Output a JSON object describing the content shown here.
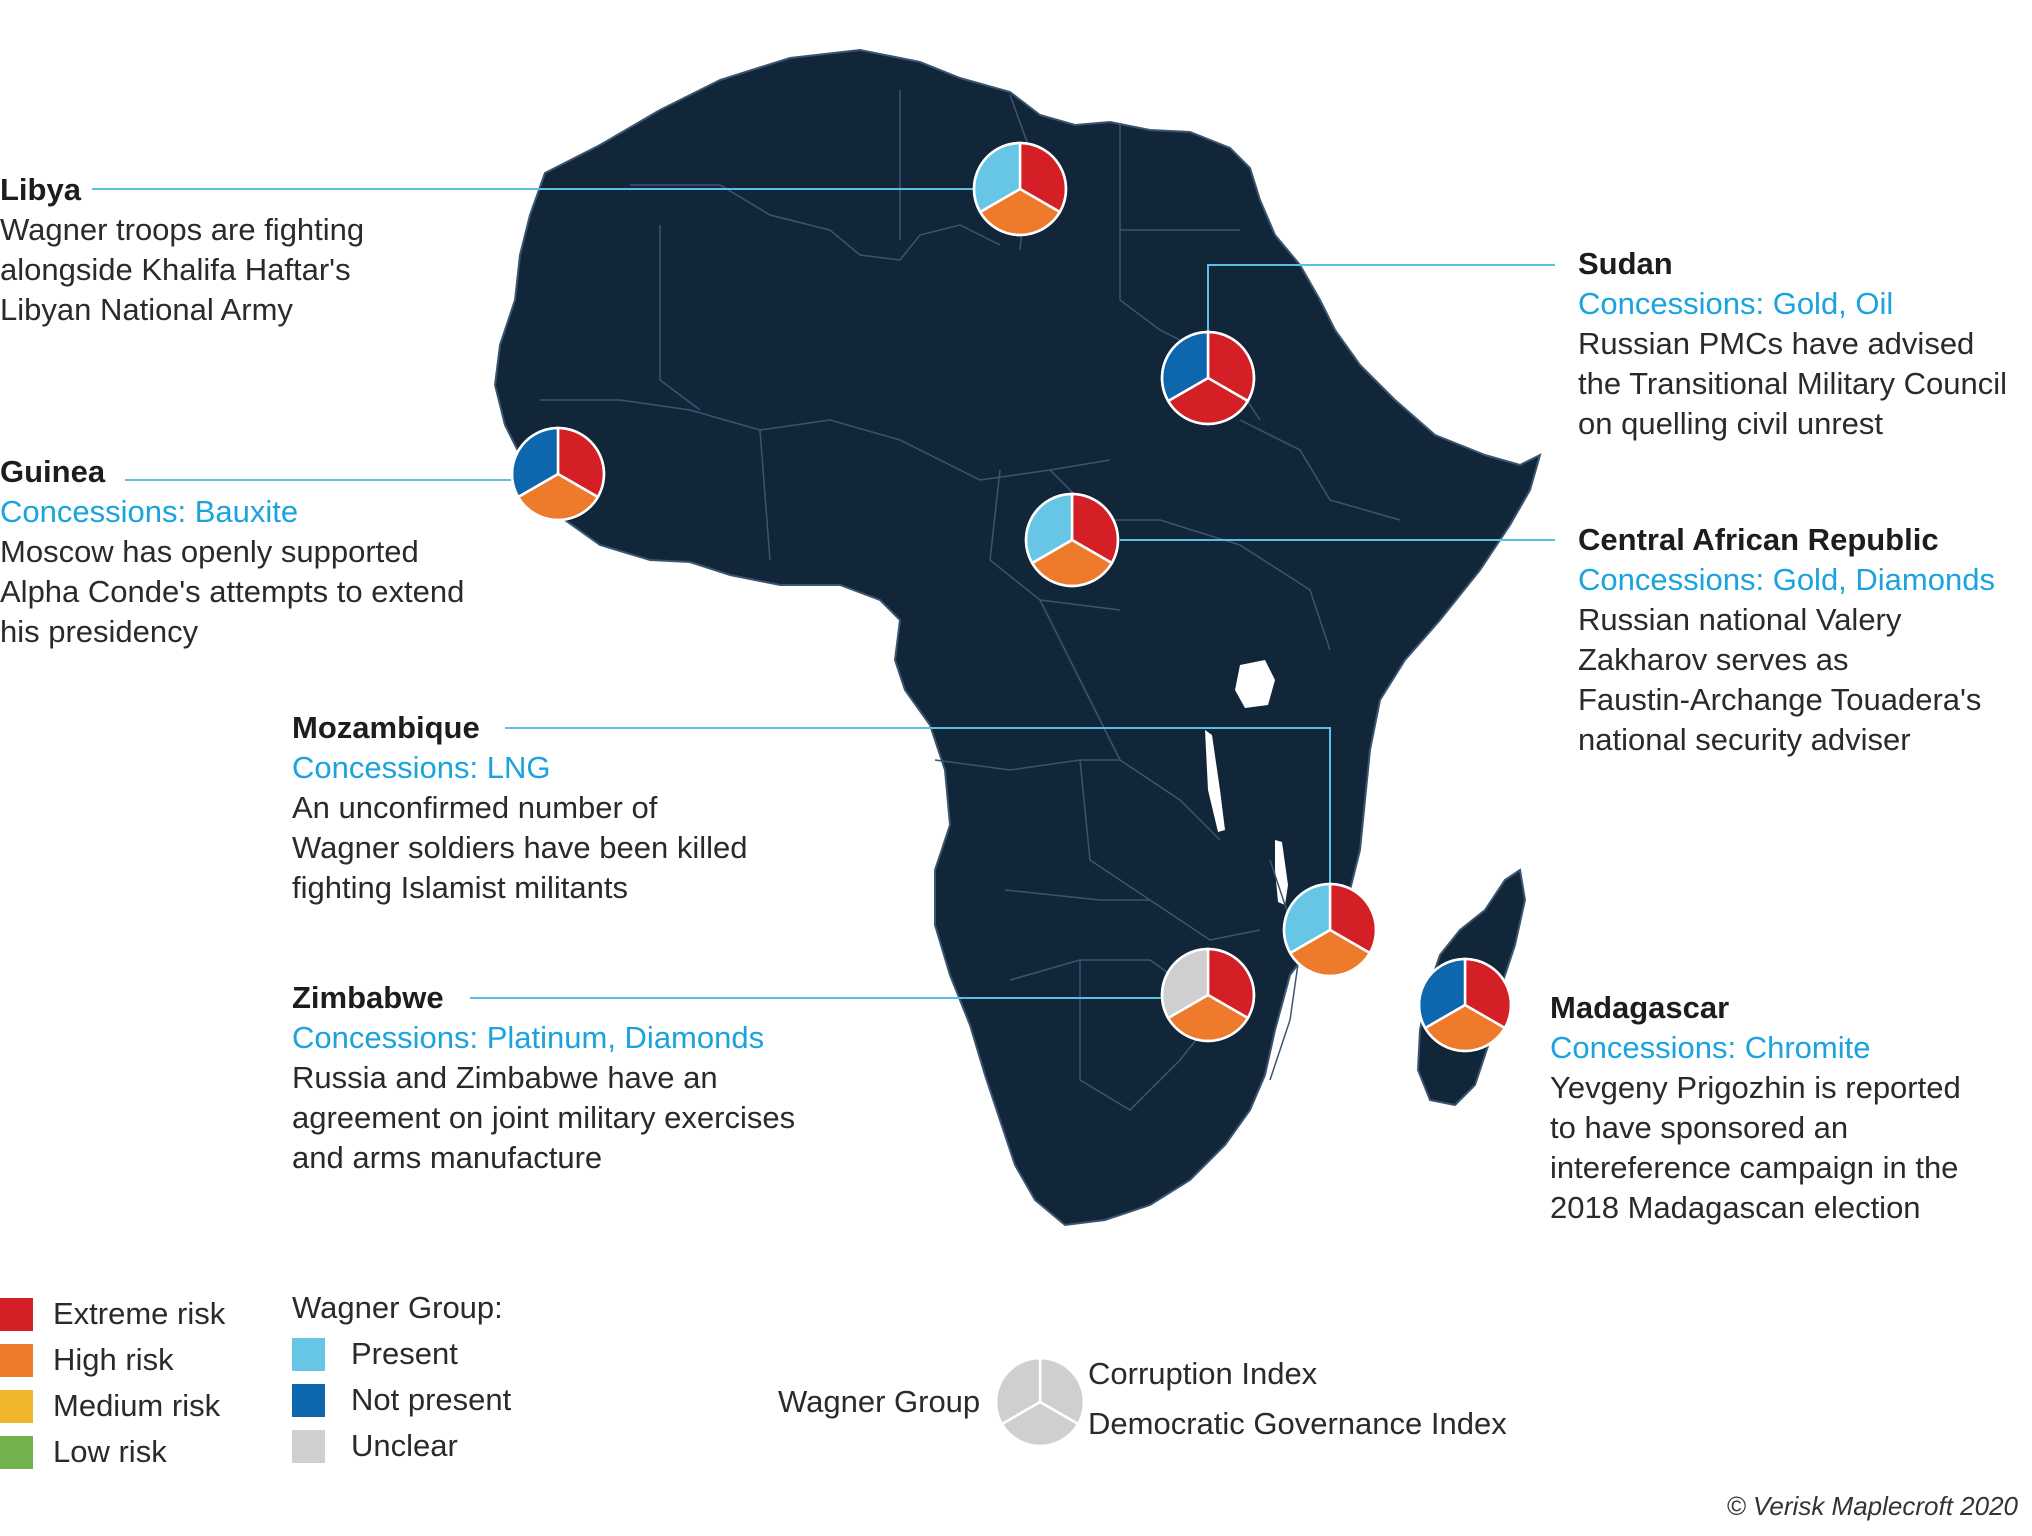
{
  "colors": {
    "map_fill": "#12263a",
    "border": "#3b5570",
    "extreme": "#d41f26",
    "high": "#ee7a2c",
    "medium": "#f0b72d",
    "low": "#71b24d",
    "present": "#67c6e6",
    "not_present": "#0e67ad",
    "unclear": "#cfcfcf",
    "leader": "#5bbfe6"
  },
  "countries": [
    {
      "name": "Libya",
      "concessions": "",
      "description": "Wagner troops are fighting\nalongside Khalifa Haftar's\nLibyan National Army",
      "wagner": "present",
      "corruption": "extreme",
      "governance": "high"
    },
    {
      "name": "Sudan",
      "concessions": "Concessions: Gold, Oil",
      "description": "Russian PMCs have advised\nthe Transitional Military Council\non quelling civil unrest",
      "wagner": "not_present",
      "corruption": "extreme",
      "governance": "extreme"
    },
    {
      "name": "Guinea",
      "concessions": "Concessions: Bauxite",
      "description": "Moscow has openly supported\nAlpha Conde's attempts to extend\nhis presidency",
      "wagner": "not_present",
      "corruption": "extreme",
      "governance": "high"
    },
    {
      "name": "Central African Republic",
      "concessions": "Concessions: Gold, Diamonds",
      "description": "Russian national Valery\nZakharov serves as\nFaustin-Archange Touadera's\nnational security adviser",
      "wagner": "present",
      "corruption": "extreme",
      "governance": "high"
    },
    {
      "name": "Mozambique",
      "concessions": "Concessions: LNG",
      "description": "An unconfirmed number of\nWagner soldiers have been killed\nfighting Islamist militants",
      "wagner": "present",
      "corruption": "extreme",
      "governance": "high"
    },
    {
      "name": "Zimbabwe",
      "concessions": "Concessions: Platinum, Diamonds",
      "description": "Russia and Zimbabwe have an\nagreement on joint military exercises\nand arms manufacture",
      "wagner": "unclear",
      "corruption": "extreme",
      "governance": "high"
    },
    {
      "name": "Madagascar",
      "concessions": "Concessions: Chromite",
      "description": "Yevgeny Prigozhin is reported\nto have sponsored an\nintereference campaign in the\n2018 Madagascan election",
      "wagner": "not_present",
      "corruption": "extreme",
      "governance": "high"
    }
  ],
  "legend": {
    "risk": [
      "Extreme risk",
      "High risk",
      "Medium risk",
      "Low risk"
    ],
    "wagner_title": "Wagner Group:",
    "wagner": [
      "Present",
      "Not present",
      "Unclear"
    ],
    "key": {
      "left": "Wagner Group",
      "top_right": "Corruption Index",
      "bottom_right": "Democratic Governance Index"
    }
  },
  "copyright": "© Verisk Maplecroft 2020"
}
